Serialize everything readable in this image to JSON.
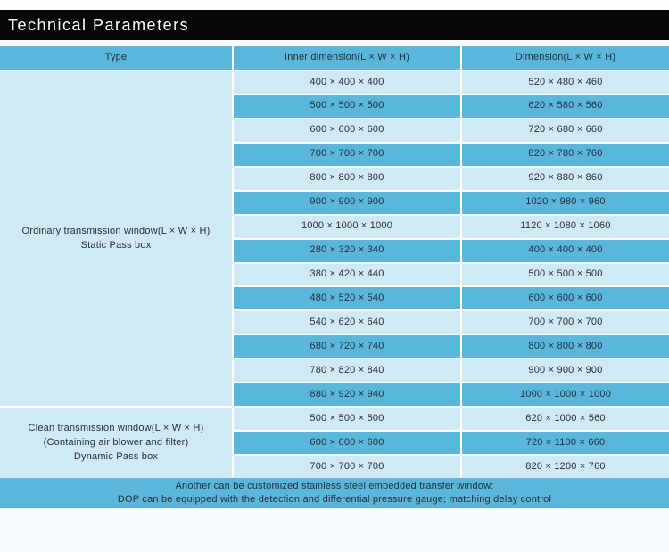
{
  "title": "Technical Parameters",
  "colors": {
    "title_bar_bg": "#060606",
    "title_text": "#ffffff",
    "row_medium_blue": "#5ab7db",
    "row_light_blue": "#cfe9f6",
    "cell_text": "#23303a",
    "border_white": "#ffffff"
  },
  "table": {
    "headers": [
      "Type",
      "Inner dimension(L × W × H)",
      "Dimension(L × W × H)"
    ],
    "sections": [
      {
        "type_lines": [
          "Ordinary transmission window(L × W × H)",
          "Static Pass box"
        ],
        "rows": [
          [
            "400 × 400 × 400",
            "520 × 480 × 460"
          ],
          [
            "500 × 500 × 500",
            "620 × 580 × 560"
          ],
          [
            "600 × 600 × 600",
            "720 × 680 × 660"
          ],
          [
            "700 × 700 × 700",
            "820 × 780 × 760"
          ],
          [
            "800 × 800 × 800",
            "920 × 880 × 860"
          ],
          [
            "900 × 900 × 900",
            "1020 × 980 × 960"
          ],
          [
            "1000 × 1000 × 1000",
            "1120 × 1080 × 1060"
          ],
          [
            "280 × 320 × 340",
            "400 × 400 × 400"
          ],
          [
            "380 × 420 × 440",
            "500 × 500 × 500"
          ],
          [
            "480 × 520 × 540",
            "600 × 600 × 600"
          ],
          [
            "540 × 620 × 640",
            "700 × 700 × 700"
          ],
          [
            "680 × 720 × 740",
            "800 × 800 × 800"
          ],
          [
            "780 × 820 × 840",
            "900 × 900 × 900"
          ],
          [
            "880 × 920 × 940",
            "1000 × 1000 × 1000"
          ]
        ]
      },
      {
        "type_lines": [
          "Clean transmission window(L × W × H)",
          "(Containing air blower and filter)",
          "Dynamic Pass box"
        ],
        "rows": [
          [
            "500 × 500 × 500",
            "620 × 1000 × 560"
          ],
          [
            "600 × 600 × 600",
            "720 × 1100 × 660"
          ],
          [
            "700 × 700 × 700",
            "820 × 1200 × 760"
          ]
        ]
      }
    ]
  },
  "footer": {
    "lines": [
      "Another can be customized stainless steel embedded transfer window:",
      "DOP can be equipped with the detection and differential pressure gauge; matching delay control"
    ]
  }
}
